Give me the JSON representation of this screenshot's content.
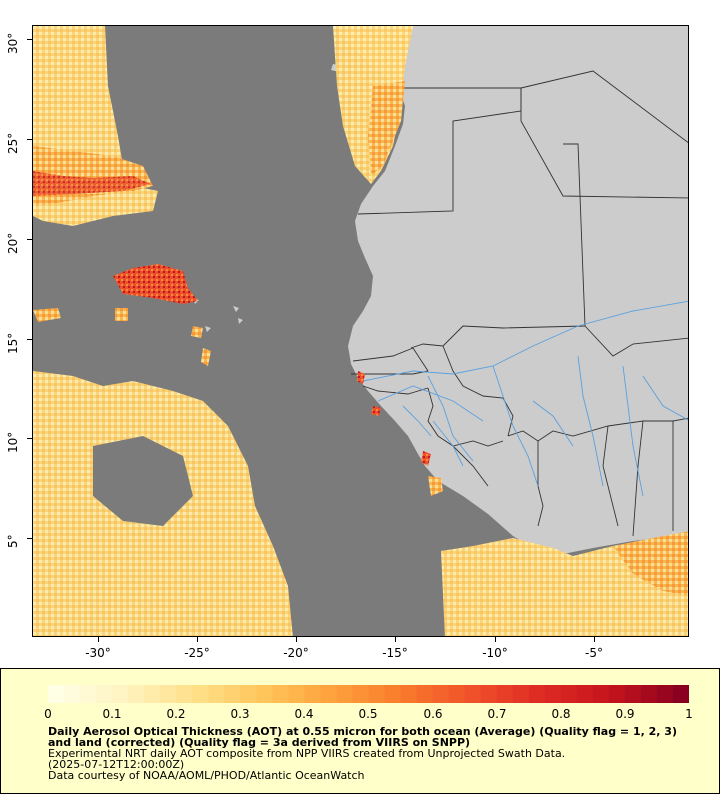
{
  "map": {
    "lat_labels": [
      "30°",
      "25°",
      "20°",
      "15°",
      "10°",
      "5°"
    ],
    "lon_labels": [
      "-30°",
      "-25°",
      "-20°",
      "-15°",
      "-10°",
      "-5°"
    ],
    "colors": {
      "no_data": "#7b7b7b",
      "land": "#cccccc",
      "rivers": "#5aa0e0",
      "borders": "#333333"
    }
  },
  "legend": {
    "ticks": [
      "0",
      "0.1",
      "0.2",
      "0.3",
      "0.4",
      "0.5",
      "0.6",
      "0.7",
      "0.8",
      "0.9",
      "1"
    ],
    "scale_colors": [
      "#ffffe6",
      "#fff3c0",
      "#ffe08a",
      "#ffc55a",
      "#fea03c",
      "#f97a2c",
      "#f0502a",
      "#de2a24",
      "#c4141c",
      "#8a0020"
    ],
    "title": "Daily Aerosol Optical Thickness (AOT) at 0.55 micron for both ocean (Average) (Quality flag = 1, 2, 3) and land (corrected) (Quality flag = 3a derived from VIIRS on SNPP)",
    "line2": "Experimental NRT daily AOT composite from NPP VIIRS created from Unprojected Swath Data.",
    "line3": "(2025-07-12T12:00:00Z)",
    "line4": "Data courtesy of NOAA/AOML/PHOD/Atlantic OceanWatch"
  }
}
